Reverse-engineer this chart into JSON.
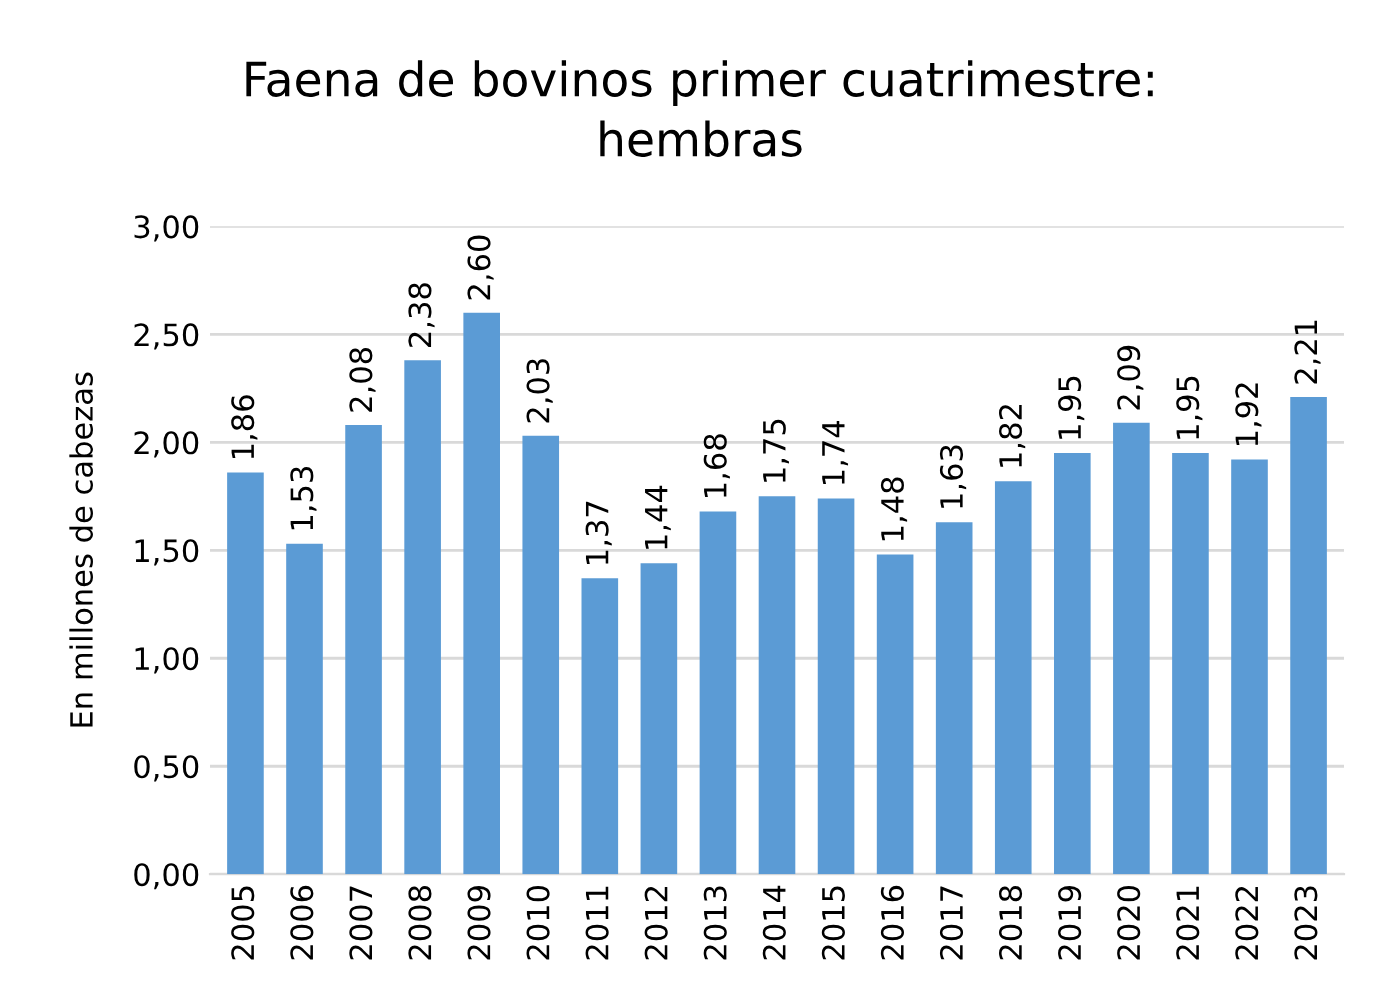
{
  "chart_data": {
    "type": "bar",
    "title": "Faena de bovinos primer cuatrimestre:\nhembras",
    "ylabel": "En millones de cabezas",
    "categories": [
      "2005",
      "2006",
      "2007",
      "2008",
      "2009",
      "2010",
      "2011",
      "2012",
      "2013",
      "2014",
      "2015",
      "2016",
      "2017",
      "2018",
      "2019",
      "2020",
      "2021",
      "2022",
      "2023"
    ],
    "values": [
      1.86,
      1.53,
      2.08,
      2.38,
      2.6,
      2.03,
      1.37,
      1.44,
      1.68,
      1.75,
      1.74,
      1.48,
      1.63,
      1.82,
      1.95,
      2.09,
      1.95,
      1.92,
      2.21
    ],
    "value_labels": [
      "1,86",
      "1,53",
      "2,08",
      "2,38",
      "2,60",
      "2,03",
      "1,37",
      "1,44",
      "1,68",
      "1,75",
      "1,74",
      "1,48",
      "1,63",
      "1,82",
      "1,95",
      "2,09",
      "1,95",
      "1,92",
      "2,21"
    ],
    "color": "#5b9bd5",
    "ylim": [
      0,
      3
    ],
    "yticks": [
      {
        "value": 0,
        "label": "0,00"
      },
      {
        "value": 0.5,
        "label": "0,50"
      },
      {
        "value": 1,
        "label": "1,00"
      },
      {
        "value": 1.5,
        "label": "1,50"
      },
      {
        "value": 2,
        "label": "2,00"
      },
      {
        "value": 2.5,
        "label": "2,50"
      },
      {
        "value": 3,
        "label": "3,00"
      }
    ],
    "grid": "y",
    "legend": false
  }
}
